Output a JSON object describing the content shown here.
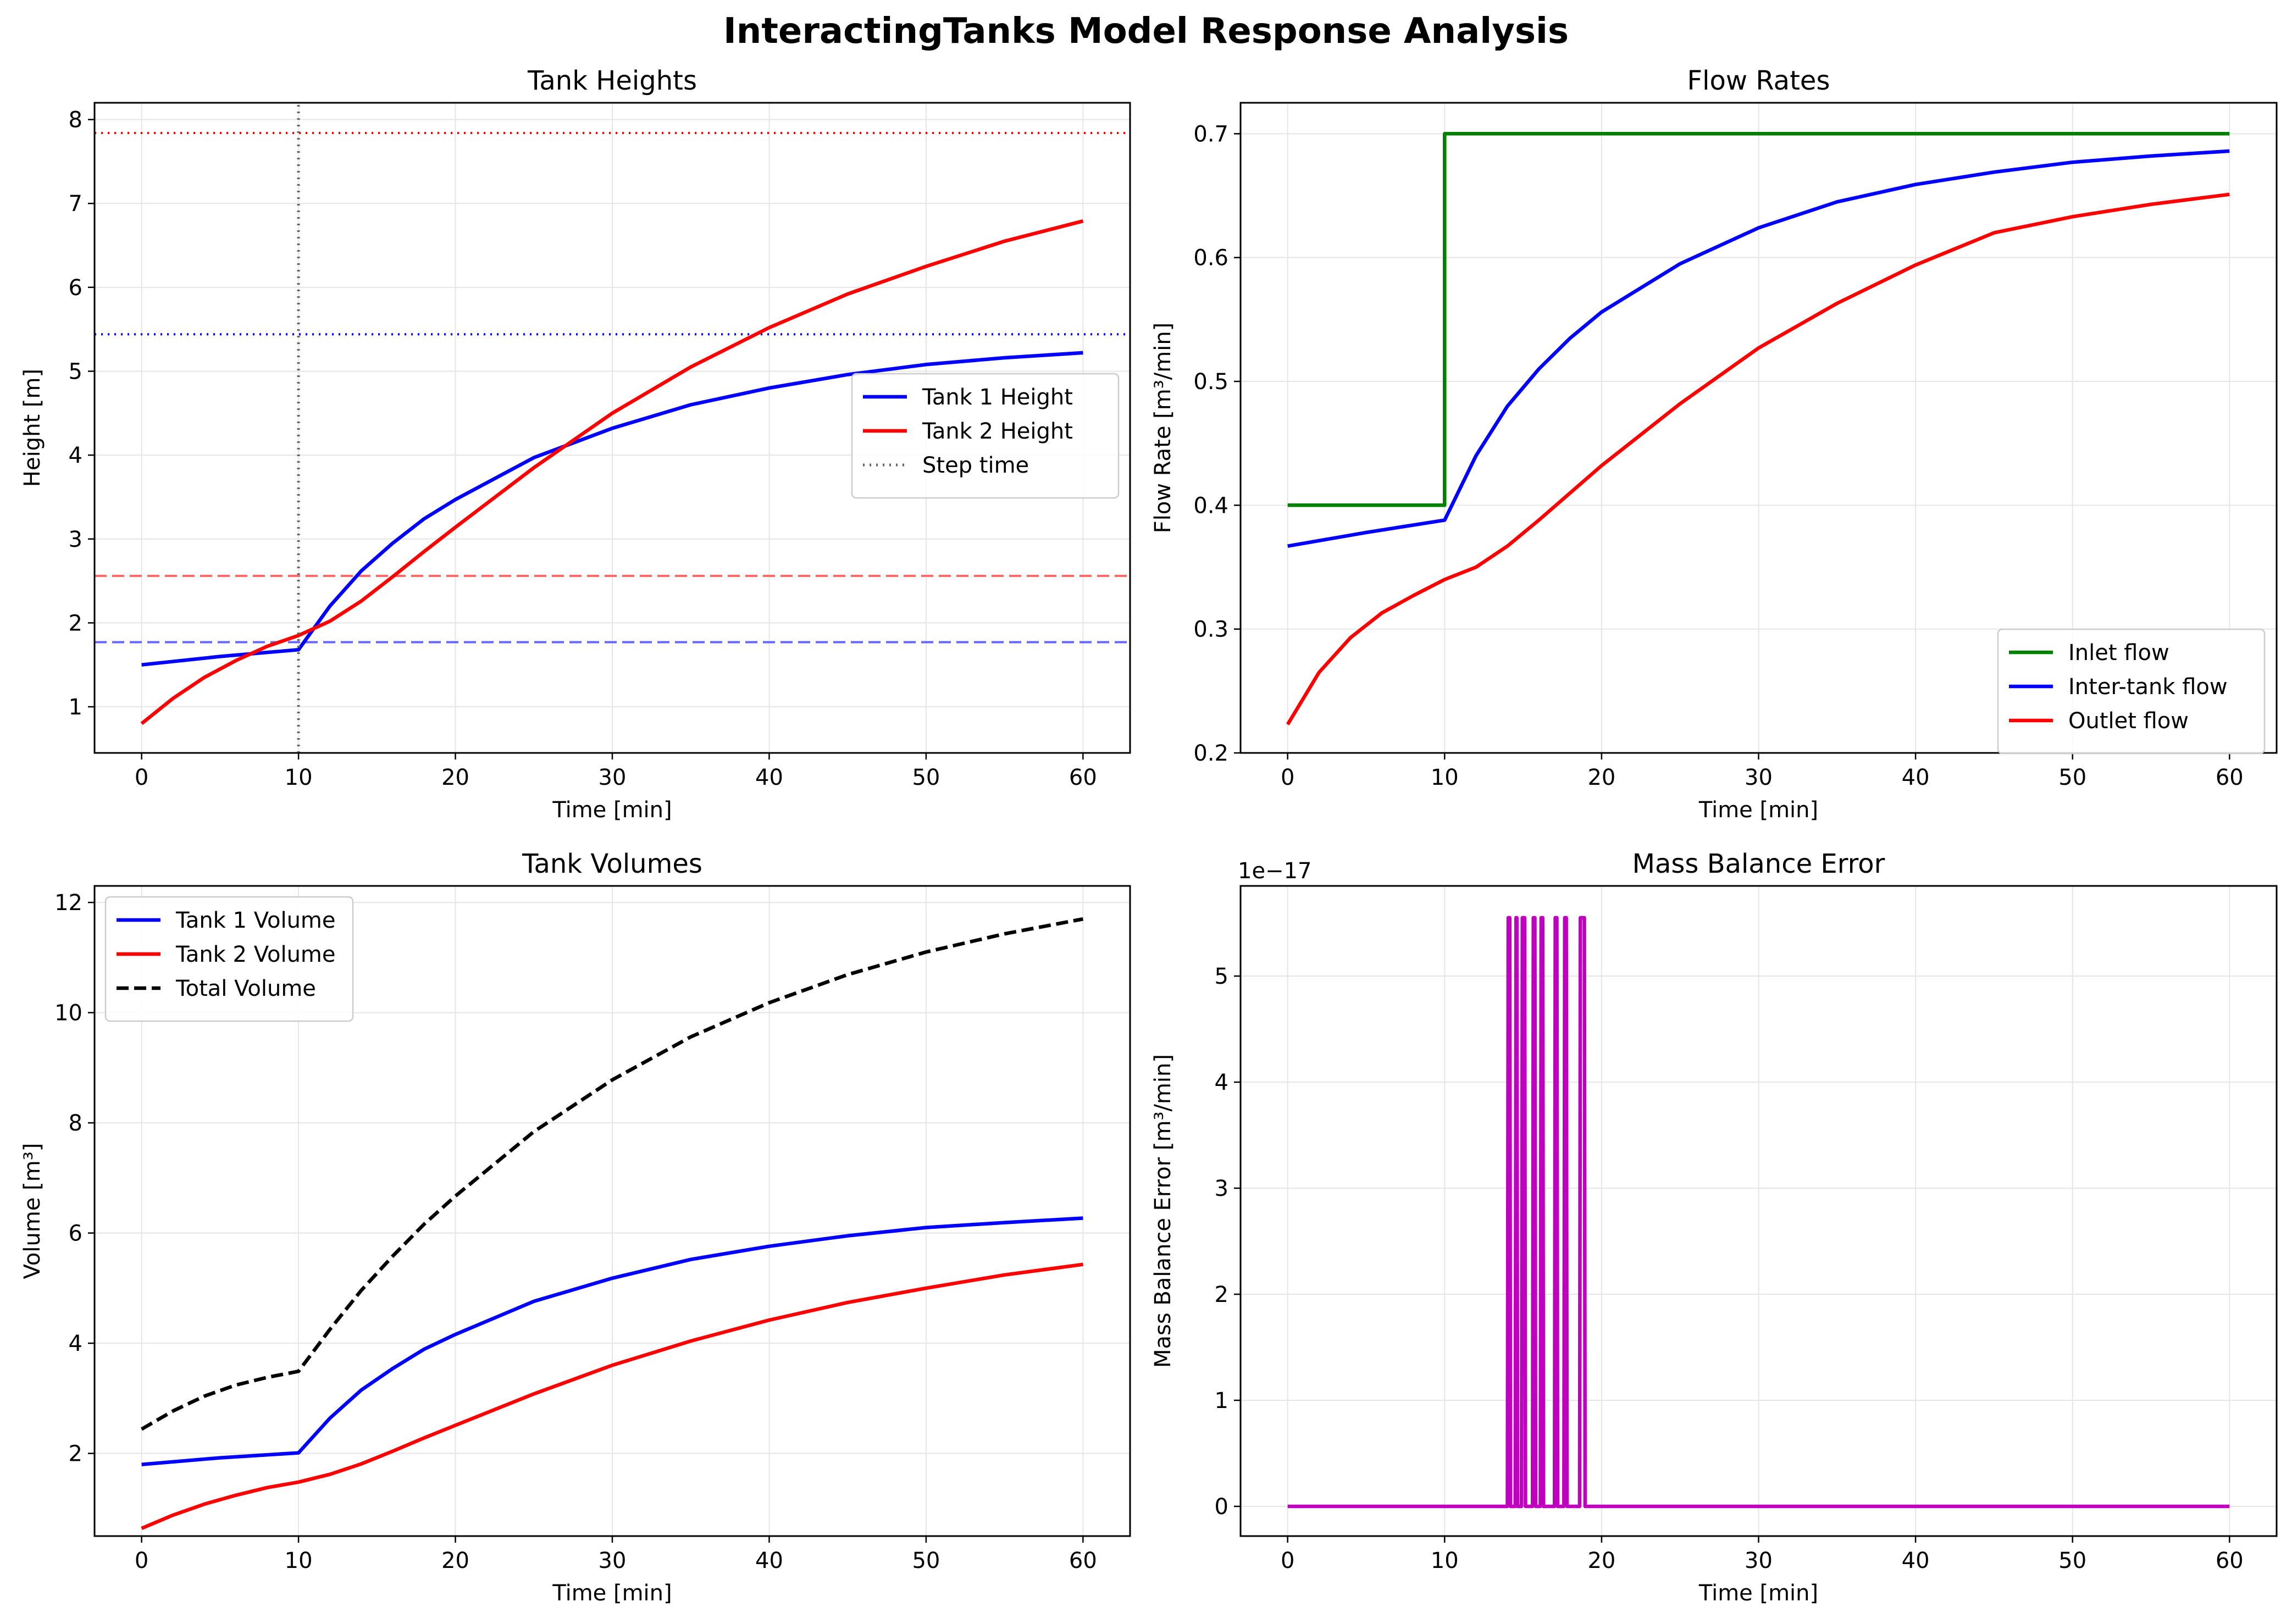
{
  "title": "InteractingTanks Model Response Analysis",
  "chart_data": [
    {
      "type": "line",
      "title": "Tank Heights",
      "xlabel": "Time [min]",
      "ylabel": "Height [m]",
      "xlim": [
        -3,
        63
      ],
      "ylim": [
        0.45,
        8.2
      ],
      "xticks": [
        0,
        10,
        20,
        30,
        40,
        50,
        60
      ],
      "yticks": [
        1,
        2,
        3,
        4,
        5,
        6,
        7,
        8
      ],
      "grid": true,
      "legend": "center-right",
      "series": [
        {
          "name": "Tank 1 Height",
          "color": "#0000ff",
          "style": "solid",
          "x": [
            0,
            5,
            10,
            12,
            14,
            16,
            18,
            20,
            25,
            30,
            35,
            40,
            45,
            50,
            55,
            60
          ],
          "y": [
            1.5,
            1.6,
            1.68,
            2.2,
            2.62,
            2.95,
            3.24,
            3.47,
            3.97,
            4.32,
            4.6,
            4.8,
            4.96,
            5.08,
            5.16,
            5.22
          ]
        },
        {
          "name": "Tank 2 Height",
          "color": "#ff0000",
          "style": "solid",
          "x": [
            0,
            2,
            4,
            6,
            8,
            10,
            12,
            14,
            16,
            18,
            20,
            25,
            30,
            35,
            40,
            45,
            50,
            55,
            60
          ],
          "y": [
            0.8,
            1.1,
            1.35,
            1.55,
            1.72,
            1.85,
            2.02,
            2.26,
            2.55,
            2.85,
            3.14,
            3.85,
            4.5,
            5.05,
            5.52,
            5.92,
            6.25,
            6.55,
            6.79
          ]
        },
        {
          "name": "Step time",
          "color": "#666666",
          "style": "dotted",
          "x": [
            10,
            10
          ],
          "y": [
            0.45,
            8.2
          ]
        }
      ],
      "reference_lines": [
        {
          "y": 7.84,
          "color": "#ff0000",
          "style": "dotted"
        },
        {
          "y": 5.44,
          "color": "#0000ff",
          "style": "dotted"
        },
        {
          "y": 2.56,
          "color": "#ff6666",
          "style": "dashed"
        },
        {
          "y": 1.77,
          "color": "#6666ff",
          "style": "dashed"
        }
      ]
    },
    {
      "type": "line",
      "title": "Flow Rates",
      "xlabel": "Time [min]",
      "ylabel": "Flow Rate [m³/min]",
      "xlim": [
        -3,
        63
      ],
      "ylim": [
        0.2,
        0.725
      ],
      "xticks": [
        0,
        10,
        20,
        30,
        40,
        50,
        60
      ],
      "yticks": [
        0.2,
        0.3,
        0.4,
        0.5,
        0.6,
        0.7
      ],
      "ytick_labels": [
        "0.2",
        "0.3",
        "0.4",
        "0.5",
        "0.6",
        "0.7"
      ],
      "grid": true,
      "legend": "lower-right",
      "series": [
        {
          "name": "Inlet flow",
          "color": "#008000",
          "style": "solid",
          "x": [
            0,
            10,
            10,
            60
          ],
          "y": [
            0.4,
            0.4,
            0.7,
            0.7
          ]
        },
        {
          "name": "Inter-tank flow",
          "color": "#0000ff",
          "style": "solid",
          "x": [
            0,
            5,
            10,
            12,
            14,
            16,
            18,
            20,
            25,
            30,
            35,
            40,
            45,
            50,
            55,
            60
          ],
          "y": [
            0.367,
            0.378,
            0.388,
            0.44,
            0.48,
            0.51,
            0.535,
            0.556,
            0.595,
            0.624,
            0.645,
            0.659,
            0.669,
            0.677,
            0.682,
            0.686
          ]
        },
        {
          "name": "Outlet flow",
          "color": "#ff0000",
          "style": "solid",
          "x": [
            0,
            2,
            4,
            6,
            8,
            10,
            12,
            14,
            16,
            18,
            20,
            25,
            30,
            35,
            40,
            45,
            50,
            55,
            60
          ],
          "y": [
            0.223,
            0.265,
            0.293,
            0.313,
            0.327,
            0.34,
            0.35,
            0.367,
            0.388,
            0.41,
            0.432,
            0.482,
            0.527,
            0.563,
            0.594,
            0.62,
            0.633,
            0.643,
            0.651
          ]
        }
      ]
    },
    {
      "type": "line",
      "title": "Tank Volumes",
      "xlabel": "Time [min]",
      "ylabel": "Volume [m³]",
      "xlim": [
        -3,
        63
      ],
      "ylim": [
        0.5,
        12.3
      ],
      "xticks": [
        0,
        10,
        20,
        30,
        40,
        50,
        60
      ],
      "yticks": [
        2,
        4,
        6,
        8,
        10,
        12
      ],
      "grid": true,
      "legend": "upper-left",
      "series": [
        {
          "name": "Tank 1 Volume",
          "color": "#0000ff",
          "style": "solid",
          "x": [
            0,
            5,
            10,
            12,
            14,
            16,
            18,
            20,
            25,
            30,
            35,
            40,
            45,
            50,
            55,
            60
          ],
          "y": [
            1.8,
            1.92,
            2.01,
            2.64,
            3.15,
            3.54,
            3.89,
            4.16,
            4.76,
            5.18,
            5.52,
            5.76,
            5.95,
            6.1,
            6.19,
            6.27
          ]
        },
        {
          "name": "Tank 2 Volume",
          "color": "#ff0000",
          "style": "solid",
          "x": [
            0,
            2,
            4,
            6,
            8,
            10,
            12,
            14,
            16,
            18,
            20,
            25,
            30,
            35,
            40,
            45,
            50,
            55,
            60
          ],
          "y": [
            0.64,
            0.88,
            1.08,
            1.24,
            1.38,
            1.48,
            1.62,
            1.81,
            2.04,
            2.28,
            2.51,
            3.08,
            3.6,
            4.04,
            4.42,
            4.74,
            5.0,
            5.24,
            5.43
          ]
        },
        {
          "name": "Total Volume",
          "color": "#000000",
          "style": "dashed",
          "x": [
            0,
            2,
            4,
            6,
            8,
            10,
            12,
            14,
            16,
            18,
            20,
            25,
            30,
            35,
            40,
            45,
            50,
            55,
            60
          ],
          "y": [
            2.44,
            2.77,
            3.04,
            3.24,
            3.38,
            3.49,
            4.25,
            4.96,
            5.58,
            6.16,
            6.67,
            7.84,
            8.78,
            9.56,
            10.18,
            10.69,
            11.1,
            11.43,
            11.7
          ]
        }
      ]
    },
    {
      "type": "line",
      "title": "Mass Balance Error",
      "xlabel": "Time [min]",
      "ylabel": "Mass Balance Error [m³/min]",
      "offset_text": "1e−17",
      "xlim": [
        -3,
        63
      ],
      "ylim": [
        -0.28,
        5.85
      ],
      "xticks": [
        0,
        10,
        20,
        30,
        40,
        50,
        60
      ],
      "yticks": [
        0,
        1,
        2,
        3,
        4,
        5
      ],
      "grid": true,
      "legend": "none",
      "series": [
        {
          "name": "",
          "color": "#bf00bf",
          "style": "solid",
          "x": [
            0,
            14.0,
            14.05,
            14.15,
            14.2,
            14.5,
            14.55,
            14.6,
            14.65,
            14.9,
            14.95,
            15.1,
            15.15,
            15.6,
            15.65,
            15.75,
            15.8,
            16.1,
            16.15,
            16.25,
            16.3,
            17.0,
            17.05,
            17.15,
            17.2,
            17.6,
            17.65,
            17.75,
            17.8,
            18.6,
            18.65,
            18.75,
            18.8,
            18.9,
            18.95,
            60
          ],
          "y": [
            0,
            0,
            5.55,
            5.55,
            0,
            0,
            5.55,
            5.55,
            0,
            0,
            5.55,
            5.55,
            0,
            0,
            5.55,
            5.55,
            0,
            0,
            5.55,
            5.55,
            0,
            0,
            5.55,
            5.55,
            0,
            0,
            5.55,
            5.55,
            0,
            0,
            5.55,
            5.55,
            5.55,
            5.55,
            0,
            0
          ]
        }
      ]
    }
  ]
}
